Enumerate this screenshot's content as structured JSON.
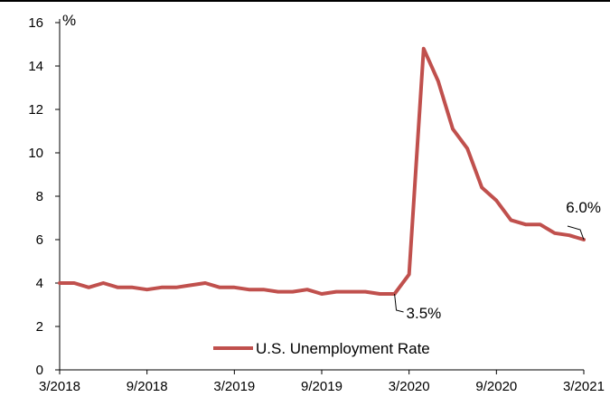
{
  "chart_data": {
    "type": "line",
    "title": "",
    "ylabel": "%",
    "xlabel": "",
    "ylim": [
      0,
      16
    ],
    "yticks": [
      0,
      2,
      4,
      6,
      8,
      10,
      12,
      14,
      16
    ],
    "xtick_labels": [
      "3/2018",
      "9/2018",
      "3/2019",
      "9/2019",
      "3/2020",
      "9/2020",
      "3/2021"
    ],
    "x": [
      "2018-03",
      "2018-04",
      "2018-05",
      "2018-06",
      "2018-07",
      "2018-08",
      "2018-09",
      "2018-10",
      "2018-11",
      "2018-12",
      "2019-01",
      "2019-02",
      "2019-03",
      "2019-04",
      "2019-05",
      "2019-06",
      "2019-07",
      "2019-08",
      "2019-09",
      "2019-10",
      "2019-11",
      "2019-12",
      "2020-01",
      "2020-02",
      "2020-03",
      "2020-04",
      "2020-05",
      "2020-06",
      "2020-07",
      "2020-08",
      "2020-09",
      "2020-10",
      "2020-11",
      "2020-12",
      "2021-01",
      "2021-02",
      "2021-03"
    ],
    "series": [
      {
        "name": "U.S. Unemployment Rate",
        "color": "#C0504D",
        "values": [
          4.0,
          4.0,
          3.8,
          4.0,
          3.8,
          3.8,
          3.7,
          3.8,
          3.8,
          3.9,
          4.0,
          3.8,
          3.8,
          3.7,
          3.7,
          3.6,
          3.6,
          3.7,
          3.5,
          3.6,
          3.6,
          3.6,
          3.5,
          3.5,
          4.4,
          14.8,
          13.3,
          11.1,
          10.2,
          8.4,
          7.8,
          6.9,
          6.7,
          6.7,
          6.3,
          6.2,
          6.0
        ]
      }
    ],
    "annotations": [
      {
        "text": "3.5%",
        "x": "2020-02",
        "y": 3.5
      },
      {
        "text": "6.0%",
        "x": "2021-03",
        "y": 6.0
      }
    ],
    "legend": "bottom-center",
    "grid": false
  }
}
